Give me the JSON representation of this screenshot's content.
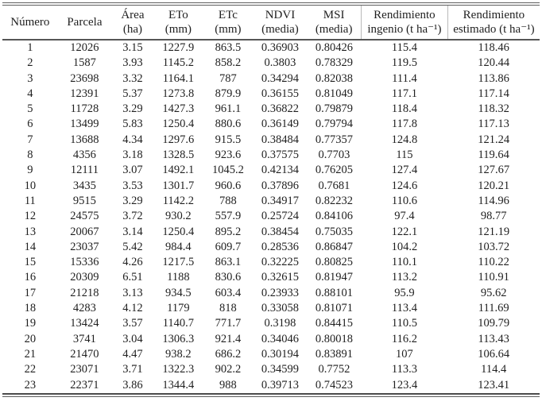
{
  "chart_data": {
    "type": "table",
    "columns": [
      {
        "id": "numero",
        "line1": "Número",
        "line2": ""
      },
      {
        "id": "parcela",
        "line1": "Parcela",
        "line2": ""
      },
      {
        "id": "area",
        "line1": "Área",
        "line2": "(ha)"
      },
      {
        "id": "eto",
        "line1": "ETo",
        "line2": "(mm)"
      },
      {
        "id": "etc",
        "line1": "ETc",
        "line2": "(mm)"
      },
      {
        "id": "ndvi",
        "line1": "NDVI",
        "line2": "(media)"
      },
      {
        "id": "msi",
        "line1": "MSI",
        "line2": "(media)"
      },
      {
        "id": "rend_ingenio",
        "line1": "Rendimiento",
        "line2": "ingenio (t ha⁻¹)"
      },
      {
        "id": "rend_estimado",
        "line1": "Rendimiento",
        "line2": "estimado (t ha⁻¹)"
      }
    ],
    "rows": [
      [
        "1",
        "12026",
        "3.15",
        "1227.9",
        "863.5",
        "0.36903",
        "0.80426",
        "115.4",
        "118.46"
      ],
      [
        "2",
        "1587",
        "3.93",
        "1145.2",
        "858.2",
        "0.3803",
        "0.78329",
        "119.5",
        "120.44"
      ],
      [
        "3",
        "23698",
        "3.32",
        "1164.1",
        "787",
        "0.34294",
        "0.82038",
        "111.4",
        "113.86"
      ],
      [
        "4",
        "12391",
        "5.37",
        "1273.8",
        "879.9",
        "0.36155",
        "0.81049",
        "117.1",
        "117.14"
      ],
      [
        "5",
        "11728",
        "3.29",
        "1427.3",
        "961.1",
        "0.36822",
        "0.79879",
        "118.4",
        "118.32"
      ],
      [
        "6",
        "13499",
        "5.83",
        "1250.4",
        "880.6",
        "0.36149",
        "0.79794",
        "117.8",
        "117.13"
      ],
      [
        "7",
        "13688",
        "4.34",
        "1297.6",
        "915.5",
        "0.38484",
        "0.77357",
        "124.8",
        "121.24"
      ],
      [
        "8",
        "4356",
        "3.18",
        "1328.5",
        "923.6",
        "0.37575",
        "0.7703",
        "115",
        "119.64"
      ],
      [
        "9",
        "12111",
        "3.07",
        "1492.1",
        "1045.2",
        "0.42134",
        "0.76205",
        "127.4",
        "127.67"
      ],
      [
        "10",
        "3435",
        "3.53",
        "1301.7",
        "960.6",
        "0.37896",
        "0.7681",
        "124.6",
        "120.21"
      ],
      [
        "11",
        "9515",
        "3.29",
        "1142.2",
        "788",
        "0.34917",
        "0.82232",
        "110.6",
        "114.96"
      ],
      [
        "12",
        "24575",
        "3.72",
        "930.2",
        "557.9",
        "0.25724",
        "0.84106",
        "97.4",
        "98.77"
      ],
      [
        "13",
        "20067",
        "3.14",
        "1250.4",
        "895.2",
        "0.38454",
        "0.75035",
        "122.1",
        "121.19"
      ],
      [
        "14",
        "23037",
        "5.42",
        "984.4",
        "609.7",
        "0.28536",
        "0.86847",
        "104.2",
        "103.72"
      ],
      [
        "15",
        "15336",
        "4.26",
        "1217.5",
        "863.1",
        "0.32225",
        "0.80825",
        "110.1",
        "110.22"
      ],
      [
        "16",
        "20309",
        "6.51",
        "1188",
        "830.6",
        "0.32615",
        "0.81947",
        "113.2",
        "110.91"
      ],
      [
        "17",
        "21218",
        "3.13",
        "934.5",
        "603.4",
        "0.23933",
        "0.88101",
        "95.9",
        "95.62"
      ],
      [
        "18",
        "4283",
        "4.12",
        "1179",
        "818",
        "0.33058",
        "0.81071",
        "113.4",
        "111.69"
      ],
      [
        "19",
        "13424",
        "3.57",
        "1140.7",
        "771.7",
        "0.3198",
        "0.84415",
        "110.5",
        "109.79"
      ],
      [
        "20",
        "3741",
        "3.04",
        "1306.3",
        "921.4",
        "0.34046",
        "0.80018",
        "116.2",
        "113.43"
      ],
      [
        "21",
        "21470",
        "4.47",
        "938.2",
        "686.2",
        "0.30194",
        "0.83891",
        "107",
        "106.64"
      ],
      [
        "22",
        "23071",
        "3.71",
        "1322.3",
        "902.2",
        "0.34599",
        "0.7752",
        "113.3",
        "114.4"
      ],
      [
        "23",
        "22371",
        "3.86",
        "1344.4",
        "988",
        "0.39713",
        "0.74523",
        "123.4",
        "123.41"
      ]
    ]
  }
}
